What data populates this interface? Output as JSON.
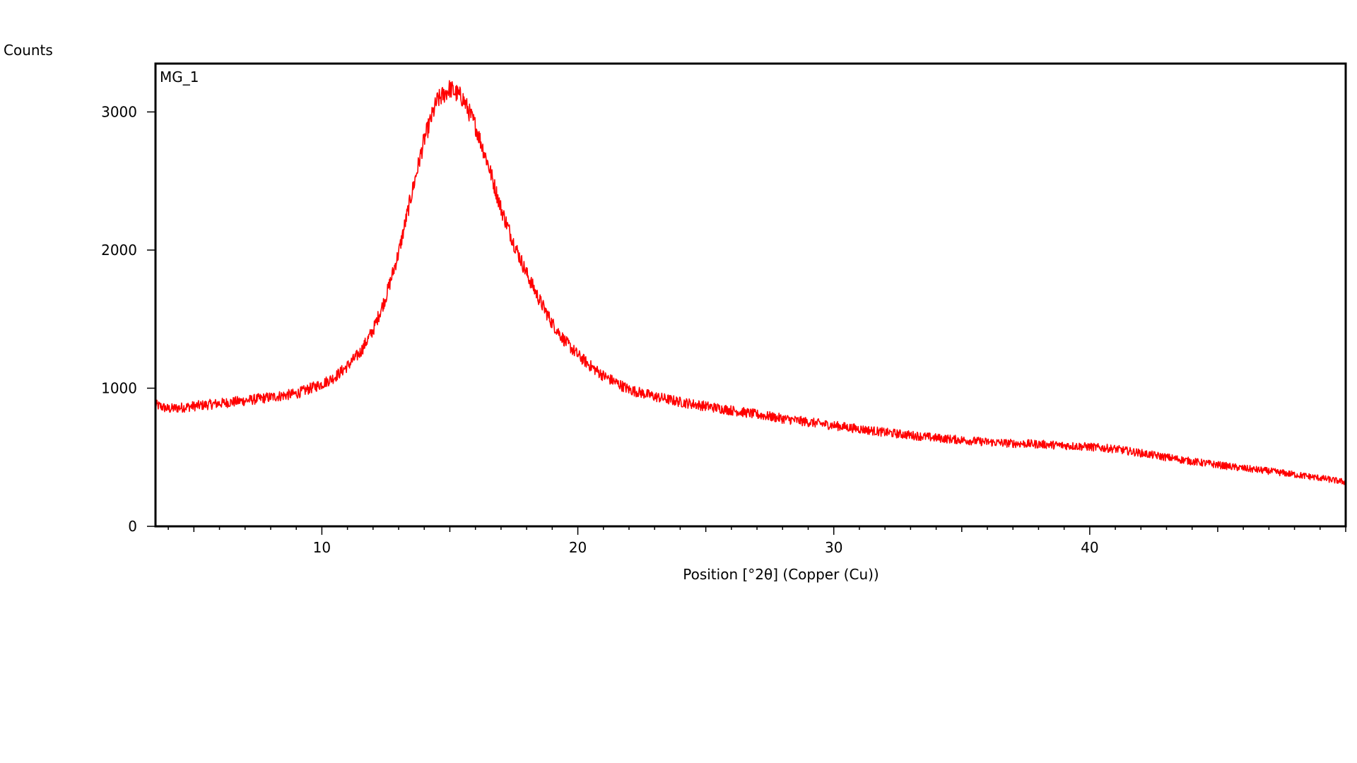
{
  "chart_data": {
    "type": "line",
    "title": "",
    "panel_label": "MG_1",
    "xlabel": "Position [°2θ] (Copper (Cu))",
    "ylabel": "Counts",
    "xlim": [
      3.5,
      50
    ],
    "ylim": [
      0,
      3350
    ],
    "x_major_ticks": [
      10,
      20,
      30,
      40
    ],
    "x_minor_step": 1,
    "y_major_ticks": [
      0,
      1000,
      2000,
      3000
    ],
    "grid": false,
    "series_color": "#ff0000",
    "series": [
      {
        "x": [
          3.5,
          4,
          5,
          6,
          7,
          8,
          9,
          10,
          10.5,
          11,
          11.5,
          12,
          12.5,
          13,
          13.5,
          14,
          14.5,
          15,
          15.5,
          16,
          16.5,
          17,
          17.5,
          18,
          18.5,
          19,
          19.5,
          20,
          20.5,
          21,
          21.5,
          22,
          23,
          24,
          25,
          26,
          27,
          28,
          29,
          30,
          31,
          32,
          33,
          34,
          35,
          36,
          37,
          38,
          39,
          40,
          41,
          42,
          43,
          44,
          45,
          46,
          47,
          48,
          49,
          50
        ],
        "y": [
          880,
          850,
          870,
          890,
          910,
          935,
          960,
          1030,
          1080,
          1160,
          1260,
          1420,
          1660,
          1980,
          2400,
          2800,
          3080,
          3170,
          3100,
          2900,
          2620,
          2300,
          2050,
          1830,
          1640,
          1470,
          1340,
          1240,
          1160,
          1090,
          1040,
          990,
          940,
          900,
          870,
          840,
          810,
          780,
          755,
          730,
          705,
          680,
          660,
          640,
          625,
          610,
          600,
          595,
          585,
          575,
          560,
          530,
          500,
          470,
          445,
          420,
          400,
          375,
          350,
          320
        ]
      }
    ]
  }
}
